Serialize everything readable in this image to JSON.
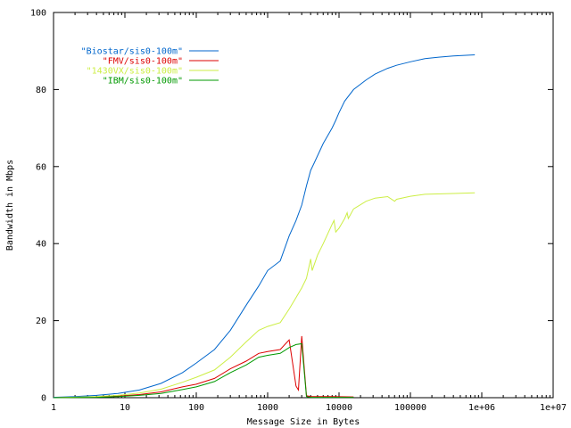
{
  "chart_data": {
    "type": "line",
    "xlabel": "Message Size in Bytes",
    "ylabel": "Bandwidth in Mbps",
    "xscale": "log",
    "xlim": [
      1,
      10000000
    ],
    "ylim": [
      0,
      100
    ],
    "x_ticks": [
      1,
      10,
      100,
      1000,
      10000,
      100000,
      1000000,
      10000000
    ],
    "x_tick_labels": [
      "1",
      "10",
      "100",
      "1000",
      "10000",
      "100000",
      "1e+06",
      "1e+07"
    ],
    "y_ticks": [
      0,
      20,
      40,
      60,
      80,
      100
    ],
    "y_tick_labels": [
      "0",
      "20",
      "40",
      "60",
      "80",
      "100"
    ],
    "grid": false,
    "legend_position": "top-left",
    "series": [
      {
        "name": "\"Biostar/sis0-100m\"",
        "color": "#0066cc",
        "points": [
          [
            1,
            0.1
          ],
          [
            2,
            0.3
          ],
          [
            4,
            0.6
          ],
          [
            8,
            1.1
          ],
          [
            16,
            2.0
          ],
          [
            32,
            3.7
          ],
          [
            64,
            6.5
          ],
          [
            100,
            9.0
          ],
          [
            180,
            12.5
          ],
          [
            300,
            17.5
          ],
          [
            500,
            24
          ],
          [
            750,
            29
          ],
          [
            1000,
            33
          ],
          [
            1500,
            35.5
          ],
          [
            2000,
            42
          ],
          [
            2500,
            46
          ],
          [
            3000,
            50
          ],
          [
            3500,
            55
          ],
          [
            4000,
            59
          ],
          [
            4500,
            61
          ],
          [
            6000,
            66
          ],
          [
            8000,
            70
          ],
          [
            9000,
            72
          ],
          [
            10000,
            74
          ],
          [
            12000,
            77
          ],
          [
            16000,
            80
          ],
          [
            24000,
            82.5
          ],
          [
            32000,
            84
          ],
          [
            48000,
            85.5
          ],
          [
            64000,
            86.3
          ],
          [
            100000,
            87.2
          ],
          [
            160000,
            88
          ],
          [
            250000,
            88.4
          ],
          [
            400000,
            88.7
          ],
          [
            800000,
            89
          ]
        ]
      },
      {
        "name": "\"FMV/sis0-100m\"",
        "color": "#dd0000",
        "points": [
          [
            1,
            0
          ],
          [
            4,
            0.2
          ],
          [
            8,
            0.4
          ],
          [
            16,
            0.8
          ],
          [
            32,
            1.5
          ],
          [
            64,
            2.8
          ],
          [
            100,
            3.5
          ],
          [
            180,
            5
          ],
          [
            300,
            7.5
          ],
          [
            500,
            9.5
          ],
          [
            750,
            11.5
          ],
          [
            1000,
            12
          ],
          [
            1500,
            12.5
          ],
          [
            2000,
            15
          ],
          [
            2500,
            3
          ],
          [
            2700,
            2
          ],
          [
            3000,
            16
          ],
          [
            3500,
            0.5
          ],
          [
            4000,
            0.3
          ],
          [
            8000,
            0.3
          ],
          [
            16000,
            0.2
          ]
        ]
      },
      {
        "name": "\"1430VX/sis0-100m\"",
        "color": "#ccee44",
        "points": [
          [
            1,
            0
          ],
          [
            4,
            0.3
          ],
          [
            8,
            0.6
          ],
          [
            16,
            1.2
          ],
          [
            32,
            2.2
          ],
          [
            64,
            4
          ],
          [
            100,
            5.3
          ],
          [
            180,
            7.2
          ],
          [
            300,
            10.5
          ],
          [
            500,
            14.5
          ],
          [
            750,
            17.5
          ],
          [
            1000,
            18.5
          ],
          [
            1500,
            19.5
          ],
          [
            2000,
            23
          ],
          [
            2500,
            26
          ],
          [
            3000,
            28.5
          ],
          [
            3500,
            31
          ],
          [
            4000,
            36
          ],
          [
            4200,
            33
          ],
          [
            5000,
            37
          ],
          [
            6000,
            40
          ],
          [
            8000,
            45
          ],
          [
            8500,
            46
          ],
          [
            9000,
            43
          ],
          [
            10000,
            44
          ],
          [
            12000,
            46.5
          ],
          [
            13000,
            48
          ],
          [
            13500,
            46.5
          ],
          [
            16000,
            49
          ],
          [
            24000,
            51
          ],
          [
            32000,
            51.8
          ],
          [
            48000,
            52.2
          ],
          [
            60000,
            51
          ],
          [
            64000,
            51.5
          ],
          [
            100000,
            52.3
          ],
          [
            160000,
            52.8
          ],
          [
            400000,
            53
          ],
          [
            800000,
            53.2
          ]
        ]
      },
      {
        "name": "\"IBM/sis0-100m\"",
        "color": "#009900",
        "points": [
          [
            1,
            0
          ],
          [
            4,
            0.1
          ],
          [
            8,
            0.3
          ],
          [
            16,
            0.6
          ],
          [
            32,
            1.1
          ],
          [
            64,
            2.1
          ],
          [
            100,
            2.8
          ],
          [
            180,
            4.2
          ],
          [
            300,
            6.5
          ],
          [
            500,
            8.5
          ],
          [
            750,
            10.5
          ],
          [
            1000,
            11
          ],
          [
            1500,
            11.5
          ],
          [
            2000,
            13
          ],
          [
            2500,
            13.8
          ],
          [
            3000,
            14
          ],
          [
            3500,
            0.3
          ],
          [
            4000,
            0.1
          ],
          [
            8000,
            0.1
          ],
          [
            16000,
            0.1
          ]
        ]
      }
    ]
  }
}
